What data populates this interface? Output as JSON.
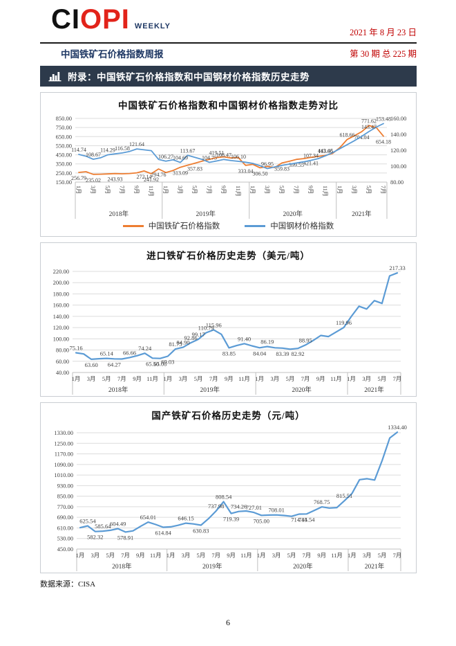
{
  "header": {
    "logo_black": "CI",
    "logo_red": "OPI",
    "logo_sub": "WEEKLY",
    "report_title": "中国铁矿石价格指数周报",
    "date": "2021 年 8 月 23 日",
    "issue": "第 30 期 总 225 期"
  },
  "banner": {
    "icon": "bar-chart-icon",
    "text": "附录：中国铁矿石价格指数和中国钢材价格指数历史走势"
  },
  "colors": {
    "orange": "#ED7D31",
    "blue": "#5B9BD5",
    "banner_bg": "#2D3A4B",
    "logo_red": "#E2231A",
    "accent_red": "#C00000",
    "navy": "#1F3864",
    "box_border": "#C9CDD2",
    "rule": "#1A1A1A"
  },
  "footer": {
    "source": "数据来源：CISA",
    "page": "6"
  },
  "chart_data": [
    {
      "type": "line",
      "title": "中国铁矿石价格指数和中国钢材价格指数走势对比",
      "x_tick_labels": [
        "1月",
        "3月",
        "5月",
        "7月",
        "9月",
        "11月",
        "1月",
        "3月",
        "5月",
        "7月",
        "9月",
        "11月",
        "1月",
        "3月",
        "5月",
        "7月",
        "9月",
        "11月",
        "1月",
        "3月",
        "5月",
        "7月"
      ],
      "year_groups": [
        {
          "label": "2018年",
          "months": 12
        },
        {
          "label": "2019年",
          "months": 12
        },
        {
          "label": "2020年",
          "months": 12
        },
        {
          "label": "2021年",
          "months": 7
        }
      ],
      "y_left": {
        "min": 150,
        "max": 850,
        "ticks": [
          "850.00",
          "750.00",
          "650.00",
          "550.00",
          "450.00",
          "350.00",
          "250.00",
          "150.00"
        ]
      },
      "y_right": {
        "min": 80,
        "max": 160,
        "ticks": [
          "160.00",
          "140.00",
          "120.00",
          "100.00",
          "80.00"
        ]
      },
      "legend_position": "bottom",
      "grid": true,
      "series": [
        {
          "name": "中国铁矿石价格指数",
          "color": "#ED7D31",
          "axis": "left",
          "values": [
            256.79,
            264,
            235.02,
            237,
            240,
            243.93,
            241,
            244,
            252,
            272.14,
            241.92,
            294.76,
            255,
            278,
            313.09,
            336,
            357.83,
            380,
            400,
            419.51,
            428,
            415,
            419,
            333.04,
            345,
            306.5,
            322,
            310,
            359.83,
            378,
            399.55,
            408,
            421.41,
            432,
            443.45,
            465,
            530,
            618.66,
            660,
            704.04,
            771.62,
            750,
            654.18
          ],
          "point_labels": [
            {
              "i": 0,
              "t": "256.79",
              "p": "b"
            },
            {
              "i": 2,
              "t": "235.02",
              "p": "b"
            },
            {
              "i": 5,
              "t": "243.93",
              "p": "b"
            },
            {
              "i": 9,
              "t": "272.14",
              "p": "b"
            },
            {
              "i": 10,
              "t": "241.92",
              "p": "b"
            },
            {
              "i": 11,
              "t": "294.76",
              "p": "b"
            },
            {
              "i": 14,
              "t": "313.09",
              "p": "b"
            },
            {
              "i": 16,
              "t": "357.83",
              "p": "b"
            },
            {
              "i": 19,
              "t": "419.51",
              "p": "a"
            },
            {
              "i": 23,
              "t": "333.04",
              "p": "b"
            },
            {
              "i": 25,
              "t": "306.50",
              "p": "b"
            },
            {
              "i": 28,
              "t": "359.83",
              "p": "b"
            },
            {
              "i": 30,
              "t": "399.55",
              "p": "b"
            },
            {
              "i": 32,
              "t": "421.41",
              "p": "b"
            },
            {
              "i": 34,
              "t": "443.45",
              "p": "a"
            },
            {
              "i": 37,
              "t": "618.66",
              "p": "a"
            },
            {
              "i": 39,
              "t": "704.04",
              "p": "b"
            },
            {
              "i": 40,
              "t": "771.62",
              "p": "a"
            },
            {
              "i": 42,
              "t": "654.18",
              "p": "b"
            }
          ]
        },
        {
          "name": "中国钢材价格指数",
          "color": "#5B9BD5",
          "axis": "right",
          "values": [
            114.74,
            112.5,
            108.67,
            110.5,
            114.29,
            115.5,
            116.58,
            118.5,
            121.64,
            120.5,
            119.5,
            108.5,
            106.27,
            108,
            104.69,
            113.67,
            111,
            108.5,
            104.75,
            106.5,
            108.47,
            107,
            106.1,
            105,
            103.5,
            100.5,
            96.95,
            99,
            101,
            102.5,
            104,
            105.5,
            107.34,
            109.5,
            113.06,
            117,
            122,
            127,
            132,
            137.5,
            143.47,
            149,
            153.48
          ],
          "point_labels": [
            {
              "i": 0,
              "t": "114.74",
              "p": "a"
            },
            {
              "i": 2,
              "t": "108.67",
              "p": "a"
            },
            {
              "i": 4,
              "t": "114.29",
              "p": "a"
            },
            {
              "i": 6,
              "t": "116.58",
              "p": "a"
            },
            {
              "i": 8,
              "t": "121.64",
              "p": "a"
            },
            {
              "i": 12,
              "t": "106.27",
              "p": "a"
            },
            {
              "i": 14,
              "t": "104.69",
              "p": "a"
            },
            {
              "i": 15,
              "t": "113.67",
              "p": "a"
            },
            {
              "i": 18,
              "t": "104.75",
              "p": "a"
            },
            {
              "i": 20,
              "t": "108.47",
              "p": "a"
            },
            {
              "i": 22,
              "t": "106.10",
              "p": "a"
            },
            {
              "i": 26,
              "t": "96.95",
              "p": "a"
            },
            {
              "i": 32,
              "t": "107.34",
              "p": "a"
            },
            {
              "i": 34,
              "t": "113.06",
              "p": "a"
            },
            {
              "i": 40,
              "t": "143.47",
              "p": "a"
            },
            {
              "i": 42,
              "t": "153.48",
              "p": "a"
            }
          ]
        }
      ]
    },
    {
      "type": "line",
      "title": "进口铁矿石价格历史走势（美元/吨）",
      "x_tick_labels": [
        "1月",
        "3月",
        "5月",
        "7月",
        "9月",
        "11月",
        "1月",
        "3月",
        "5月",
        "7月",
        "9月",
        "11月",
        "1月",
        "3月",
        "5月",
        "7月",
        "9月",
        "11月",
        "1月",
        "3月",
        "5月",
        "7月"
      ],
      "year_groups": [
        {
          "label": "2018年",
          "months": 12
        },
        {
          "label": "2019年",
          "months": 12
        },
        {
          "label": "2020年",
          "months": 12
        },
        {
          "label": "2021年",
          "months": 7
        }
      ],
      "y_left": {
        "min": 40,
        "max": 220,
        "ticks": [
          "220.00",
          "200.00",
          "180.00",
          "160.00",
          "140.00",
          "120.00",
          "100.00",
          "80.00",
          "60.00",
          "40.00"
        ]
      },
      "grid": true,
      "series": [
        {
          "name": "进口铁矿石价格",
          "color": "#5B9BD5",
          "axis": "left",
          "values": [
            75.16,
            73,
            63.6,
            64.5,
            65.14,
            64.27,
            64,
            66.66,
            70,
            74.24,
            65.5,
            65.08,
            69.03,
            81.75,
            84.9,
            92.86,
            99.17,
            110.79,
            115.96,
            108,
            83.85,
            88,
            91.4,
            87.5,
            84.04,
            86.19,
            84,
            83.39,
            81.5,
            82.92,
            88.95,
            97,
            106,
            104,
            112,
            119.96,
            140,
            158,
            153,
            168,
            163,
            212,
            217.33
          ],
          "point_labels": [
            {
              "i": 0,
              "t": "75.16",
              "p": "a"
            },
            {
              "i": 2,
              "t": "63.60",
              "p": "b"
            },
            {
              "i": 4,
              "t": "65.14",
              "p": "a"
            },
            {
              "i": 5,
              "t": "64.27",
              "p": "b"
            },
            {
              "i": 7,
              "t": "66.66",
              "p": "a"
            },
            {
              "i": 9,
              "t": "74.24",
              "p": "a"
            },
            {
              "i": 10,
              "t": "65.50",
              "p": "b"
            },
            {
              "i": 11,
              "t": "65.08",
              "p": "b"
            },
            {
              "i": 12,
              "t": "69.03",
              "p": "b"
            },
            {
              "i": 13,
              "t": "81.75",
              "p": "a"
            },
            {
              "i": 14,
              "t": "84.90",
              "p": "a"
            },
            {
              "i": 15,
              "t": "92.86",
              "p": "a"
            },
            {
              "i": 16,
              "t": "99.17",
              "p": "a"
            },
            {
              "i": 17,
              "t": "110.79",
              "p": "a"
            },
            {
              "i": 18,
              "t": "115.96",
              "p": "a"
            },
            {
              "i": 20,
              "t": "83.85",
              "p": "b"
            },
            {
              "i": 22,
              "t": "91.40",
              "p": "a"
            },
            {
              "i": 24,
              "t": "84.04",
              "p": "b"
            },
            {
              "i": 25,
              "t": "86.19",
              "p": "a"
            },
            {
              "i": 27,
              "t": "83.39",
              "p": "b"
            },
            {
              "i": 29,
              "t": "82.92",
              "p": "b"
            },
            {
              "i": 30,
              "t": "88.95",
              "p": "a"
            },
            {
              "i": 35,
              "t": "119.96",
              "p": "a"
            },
            {
              "i": 42,
              "t": "217.33",
              "p": "a"
            }
          ]
        }
      ]
    },
    {
      "type": "line",
      "title": "国产铁矿石价格历史走势（元/吨）",
      "x_tick_labels": [
        "1月",
        "3月",
        "5月",
        "7月",
        "9月",
        "11月",
        "1月",
        "3月",
        "5月",
        "7月",
        "9月",
        "11月",
        "1月",
        "3月",
        "5月",
        "7月",
        "9月",
        "11月",
        "1月",
        "3月",
        "5月",
        "7月"
      ],
      "year_groups": [
        {
          "label": "2018年",
          "months": 12
        },
        {
          "label": "2019年",
          "months": 12
        },
        {
          "label": "2020年",
          "months": 12
        },
        {
          "label": "2021年",
          "months": 7
        }
      ],
      "y_left": {
        "min": 450,
        "max": 1330,
        "ticks": [
          "1330.00",
          "1250.00",
          "1170.00",
          "1090.00",
          "1010.00",
          "930.00",
          "850.00",
          "770.00",
          "690.00",
          "610.00",
          "530.00",
          "450.00"
        ]
      },
      "grid": true,
      "series": [
        {
          "name": "国产铁矿石价格",
          "color": "#5B9BD5",
          "axis": "left",
          "values": [
            612,
            625.54,
            582.32,
            585.64,
            592,
            604.49,
            578.91,
            588,
            622,
            654.01,
            636,
            614.84,
            618,
            630,
            646.15,
            640,
            630.83,
            680,
            737.98,
            808.54,
            719.39,
            734.26,
            738,
            727.01,
            705,
            707,
            708.01,
            704,
            698,
            714.44,
            715.54,
            742,
            768.75,
            760,
            764,
            815.51,
            870,
            975,
            982,
            972,
            1120,
            1290,
            1334.4
          ],
          "point_labels": [
            {
              "i": 1,
              "t": "625.54",
              "p": "a"
            },
            {
              "i": 2,
              "t": "582.32",
              "p": "b"
            },
            {
              "i": 3,
              "t": "585.64",
              "p": "a"
            },
            {
              "i": 5,
              "t": "604.49",
              "p": "a"
            },
            {
              "i": 6,
              "t": "578.91",
              "p": "b"
            },
            {
              "i": 9,
              "t": "654.01",
              "p": "a"
            },
            {
              "i": 11,
              "t": "614.84",
              "p": "b"
            },
            {
              "i": 14,
              "t": "646.15",
              "p": "a"
            },
            {
              "i": 16,
              "t": "630.83",
              "p": "b"
            },
            {
              "i": 18,
              "t": "737.98",
              "p": "a"
            },
            {
              "i": 19,
              "t": "808.54",
              "p": "a"
            },
            {
              "i": 20,
              "t": "719.39",
              "p": "b"
            },
            {
              "i": 21,
              "t": "734.26",
              "p": "a"
            },
            {
              "i": 23,
              "t": "727.01",
              "p": "a"
            },
            {
              "i": 24,
              "t": "705.00",
              "p": "b"
            },
            {
              "i": 26,
              "t": "708.01",
              "p": "a"
            },
            {
              "i": 29,
              "t": "714.44",
              "p": "b"
            },
            {
              "i": 30,
              "t": "715.54",
              "p": "b"
            },
            {
              "i": 32,
              "t": "768.75",
              "p": "a"
            },
            {
              "i": 35,
              "t": "815.51",
              "p": "a"
            },
            {
              "i": 42,
              "t": "1334.40",
              "p": "a"
            }
          ]
        }
      ]
    }
  ]
}
